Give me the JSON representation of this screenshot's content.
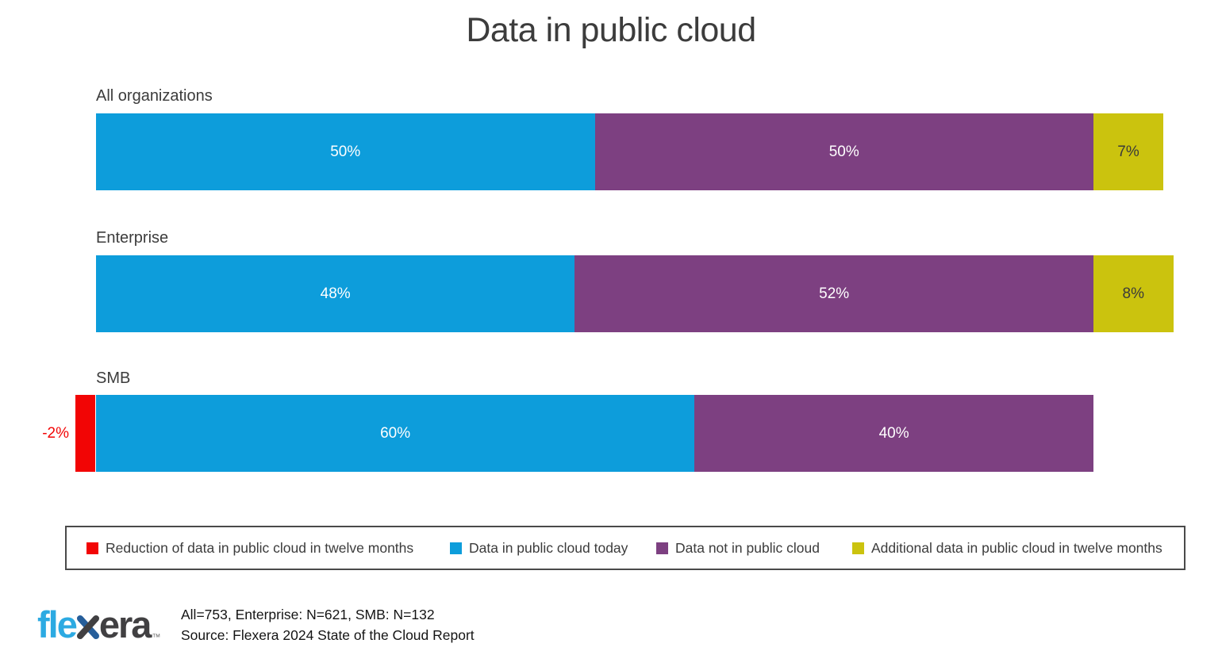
{
  "title": "Data in public cloud",
  "chart_data": {
    "type": "bar",
    "orientation": "horizontal",
    "stacked": true,
    "unit": "%",
    "axis_range": [
      -2,
      108
    ],
    "grid": false,
    "legend_position": "bottom",
    "categories": [
      "All organizations",
      "Enterprise",
      "SMB"
    ],
    "series": [
      {
        "name": "Reduction of data in public cloud in twelve months",
        "color": "#f20505",
        "label_color": "#f20505",
        "values": [
          null,
          null,
          -2
        ]
      },
      {
        "name": "Data in public cloud today",
        "color": "#0d9ddb",
        "label_color": "#ffffff",
        "values": [
          50,
          48,
          60
        ]
      },
      {
        "name": "Data not in public cloud",
        "color": "#7d4081",
        "label_color": "#ffffff",
        "values": [
          50,
          52,
          40
        ]
      },
      {
        "name": "Additional data in public cloud in twelve months",
        "color": "#cbc30e",
        "label_color": "#3a3a3a",
        "values": [
          7,
          8,
          null
        ]
      }
    ],
    "data_labels": [
      [
        "50%",
        "50%",
        "7%"
      ],
      [
        "48%",
        "52%",
        "8%"
      ],
      [
        "-2%",
        "60%",
        "40%"
      ]
    ]
  },
  "footer": {
    "logo": {
      "pre": "fle",
      "x": "x",
      "post": "era",
      "trademark": "™"
    },
    "sample_note": "All=753, Enterprise: N=621, SMB: N=132",
    "source_note": "Source: Flexera 2024 State of the Cloud Report"
  }
}
